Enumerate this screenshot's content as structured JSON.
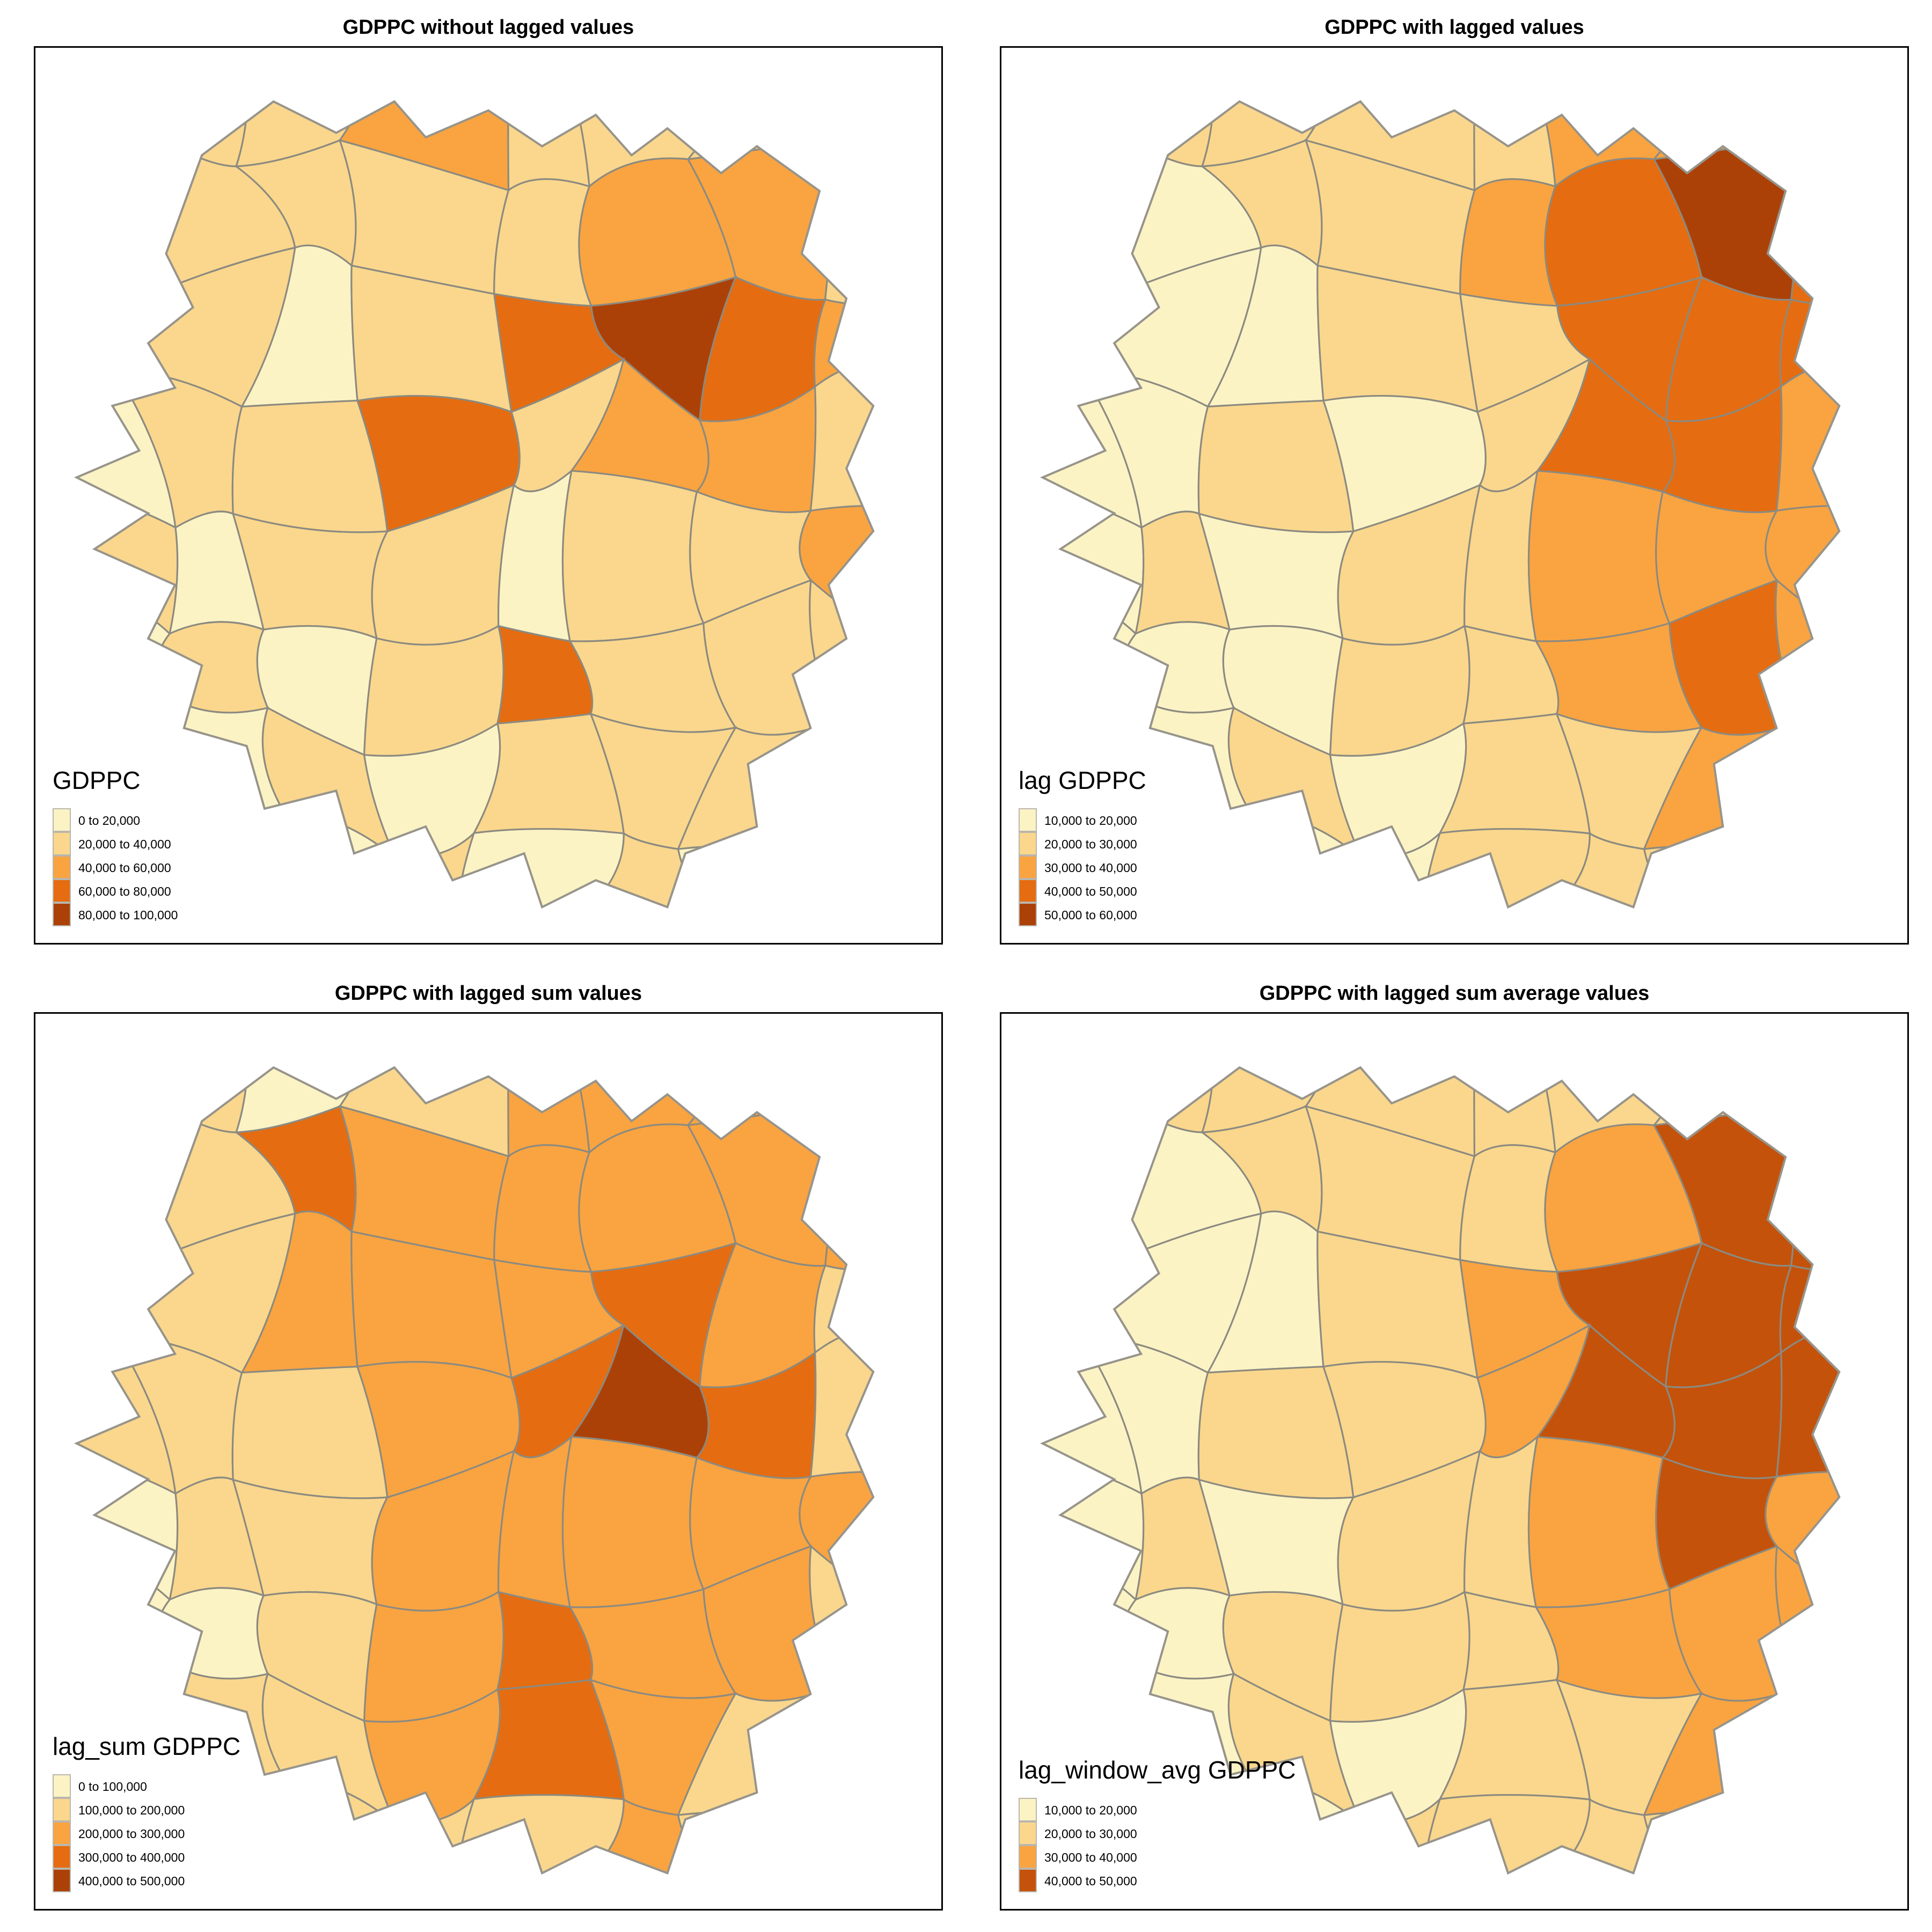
{
  "figure": {
    "background": "#ffffff",
    "frame_border_color": "#000000",
    "county_border_color": "#8c8a80",
    "region_outline_color": "#97948b"
  },
  "panels": [
    {
      "id": "gdppc",
      "title": "GDPPC without lagged values",
      "legend_title": "GDPPC",
      "legend_labels": [
        "0 to 20,000",
        "20,000 to 40,000",
        "40,000 to 60,000",
        "60,000 to 80,000",
        "80,000 to 100,000"
      ],
      "palette": [
        "#FCF3C5",
        "#FAD78D",
        "#F9A441",
        "#E56C10",
        "#AC4108"
      ],
      "cells": [
        1,
        1,
        1,
        2,
        1,
        1,
        1,
        1,
        1,
        1,
        1,
        1,
        1,
        2,
        2,
        1,
        0,
        1,
        0,
        1,
        3,
        4,
        3,
        2,
        0,
        1,
        1,
        3,
        1,
        2,
        2,
        1,
        1,
        0,
        1,
        1,
        0,
        1,
        1,
        2,
        0,
        1,
        0,
        1,
        3,
        1,
        1,
        1,
        0,
        0,
        1,
        0,
        1,
        1,
        1,
        1,
        0,
        0,
        0,
        1,
        0,
        1,
        0,
        0
      ]
    },
    {
      "id": "lag-gdppc",
      "title": "GDPPC with lagged values",
      "legend_title": "lag GDPPC",
      "legend_labels": [
        "10,000 to 20,000",
        "20,000 to 30,000",
        "30,000 to 40,000",
        "40,000 to 50,000",
        "50,000 to 60,000"
      ],
      "palette": [
        "#FCF3C5",
        "#FAD78D",
        "#F9A441",
        "#E56C10",
        "#AC4108"
      ],
      "cells": [
        1,
        1,
        1,
        1,
        1,
        2,
        2,
        2,
        0,
        0,
        1,
        1,
        2,
        3,
        4,
        3,
        0,
        0,
        0,
        1,
        1,
        3,
        3,
        3,
        0,
        0,
        1,
        0,
        1,
        3,
        3,
        2,
        0,
        1,
        0,
        1,
        1,
        2,
        2,
        2,
        0,
        0,
        0,
        1,
        1,
        2,
        3,
        2,
        0,
        0,
        1,
        0,
        1,
        1,
        2,
        2,
        0,
        0,
        0,
        0,
        1,
        1,
        1,
        1
      ]
    },
    {
      "id": "lag-sum-gdppc",
      "title": "GDPPC with lagged sum values",
      "legend_title": "lag_sum GDPPC",
      "legend_labels": [
        "0 to 100,000",
        "100,000 to 200,000",
        "200,000 to 300,000",
        "300,000 to 400,000",
        "400,000 to 500,000"
      ],
      "palette": [
        "#FCF3C5",
        "#FAD78D",
        "#F9A441",
        "#E56C10",
        "#AC4108"
      ],
      "cells": [
        1,
        1,
        0,
        1,
        2,
        2,
        2,
        1,
        0,
        1,
        3,
        2,
        2,
        2,
        2,
        2,
        0,
        1,
        2,
        2,
        2,
        3,
        2,
        1,
        1,
        1,
        1,
        2,
        3,
        4,
        3,
        1,
        0,
        1,
        1,
        2,
        2,
        2,
        2,
        2,
        0,
        0,
        1,
        2,
        3,
        2,
        2,
        1,
        0,
        1,
        1,
        2,
        3,
        2,
        1,
        1,
        0,
        0,
        1,
        1,
        1,
        2,
        1,
        0
      ]
    },
    {
      "id": "lag-window-avg-gdppc",
      "title": "GDPPC with lagged sum average values",
      "legend_title": "lag_window_avg GDPPC",
      "legend_labels": [
        "10,000 to 20,000",
        "20,000 to 30,000",
        "30,000 to 40,000",
        "40,000 to 50,000"
      ],
      "palette": [
        "#FCF3C5",
        "#FAD78D",
        "#F9A441",
        "#C4520B"
      ],
      "cells": [
        1,
        1,
        1,
        1,
        1,
        1,
        1,
        1,
        0,
        0,
        1,
        1,
        1,
        2,
        3,
        3,
        0,
        0,
        0,
        1,
        2,
        3,
        3,
        3,
        0,
        0,
        1,
        1,
        2,
        3,
        3,
        3,
        0,
        1,
        0,
        1,
        1,
        2,
        3,
        2,
        0,
        0,
        1,
        1,
        1,
        2,
        2,
        2,
        0,
        0,
        1,
        0,
        1,
        1,
        2,
        1,
        0,
        0,
        0,
        1,
        1,
        1,
        1,
        1
      ]
    }
  ],
  "chart_data": [
    {
      "type": "choropleth",
      "title": "GDPPC without lagged values",
      "variable": "GDPPC",
      "class_breaks": [
        0,
        20000,
        40000,
        60000,
        80000,
        100000
      ],
      "legend_position": "bottom-left"
    },
    {
      "type": "choropleth",
      "title": "GDPPC with lagged values",
      "variable": "lag GDPPC",
      "class_breaks": [
        10000,
        20000,
        30000,
        40000,
        50000,
        60000
      ],
      "legend_position": "bottom-left"
    },
    {
      "type": "choropleth",
      "title": "GDPPC with lagged sum values",
      "variable": "lag_sum GDPPC",
      "class_breaks": [
        0,
        100000,
        200000,
        300000,
        400000,
        500000
      ],
      "legend_position": "bottom-left"
    },
    {
      "type": "choropleth",
      "title": "GDPPC with lagged sum average values",
      "variable": "lag_window_avg GDPPC",
      "class_breaks": [
        10000,
        20000,
        30000,
        40000,
        50000
      ],
      "legend_position": "bottom-left"
    }
  ]
}
